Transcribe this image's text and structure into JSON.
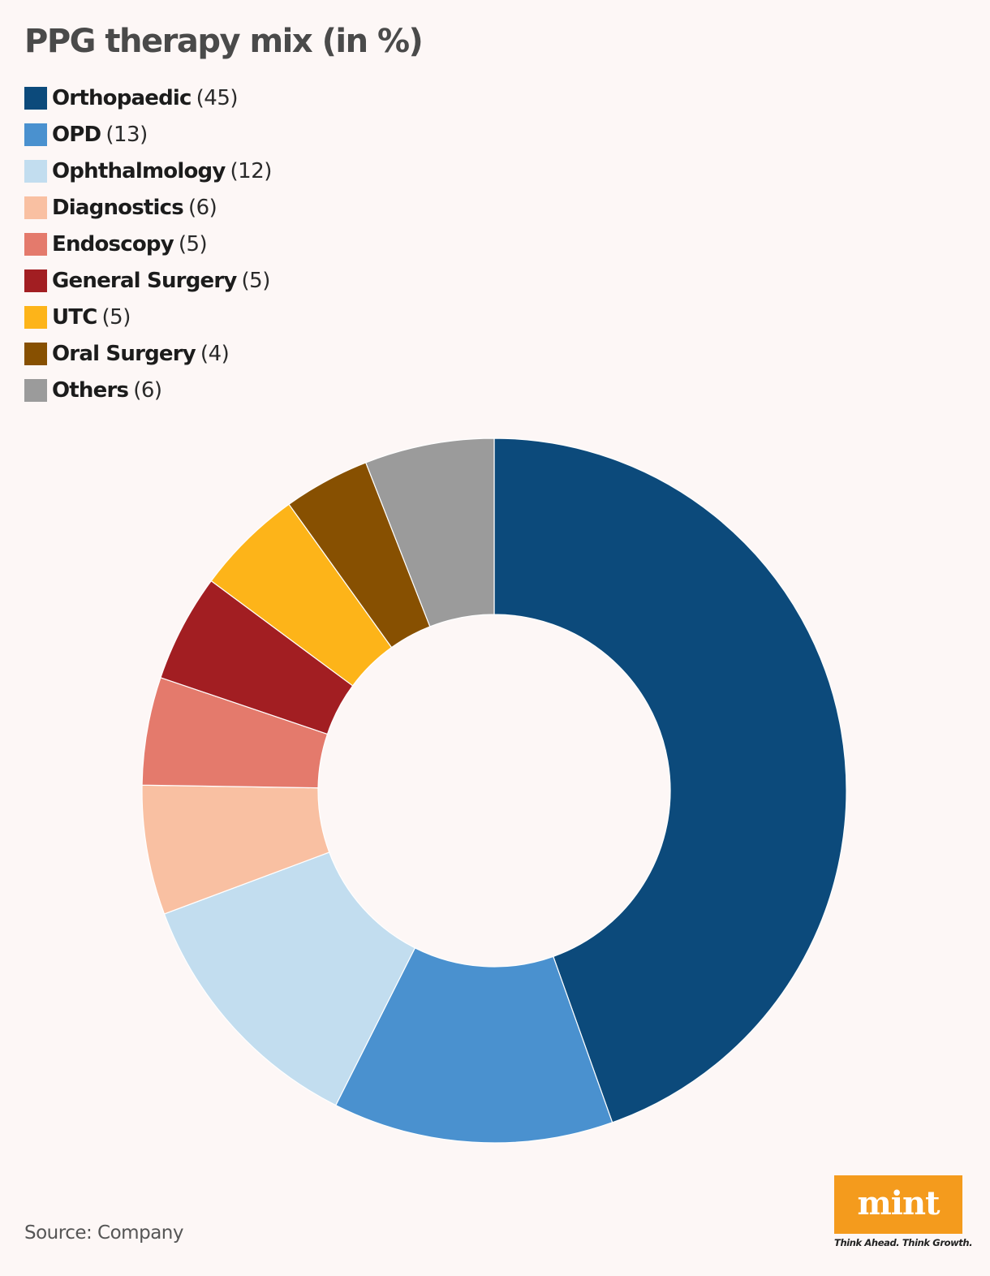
{
  "chart_data": {
    "type": "pie",
    "title": "PPG therapy mix (in %)",
    "categories": [
      "Orthopaedic",
      "OPD",
      "Ophthalmology",
      "Diagnostics",
      "Endoscopy",
      "General Surgery",
      "UTC",
      "Oral Surgery",
      "Others"
    ],
    "values": [
      45,
      13,
      12,
      6,
      5,
      5,
      5,
      4,
      6
    ],
    "value_labels": [
      "(45)",
      "(13)",
      "(12)",
      "(6)",
      "(5)",
      "(5)",
      "(5)",
      "(4)",
      "(6)"
    ],
    "colors": [
      "#0c4a7b",
      "#4a91cf",
      "#c2ddef",
      "#f9c0a2",
      "#e47a6c",
      "#a21e22",
      "#fdb419",
      "#875001",
      "#9b9b9b"
    ],
    "style": "donut",
    "legend_position": "top-left",
    "source": "Source: Company"
  },
  "branding": {
    "logo_text": "mint",
    "tagline": "Think Ahead. Think Growth.",
    "logo_color": "#f49b1d"
  }
}
